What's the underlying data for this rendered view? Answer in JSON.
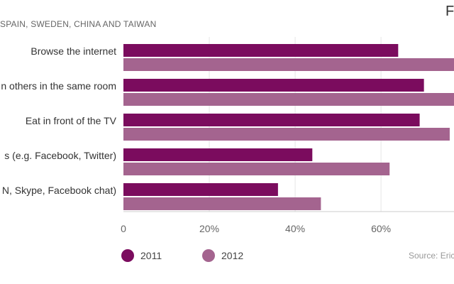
{
  "header": {
    "subtitle": "SPAIN, SWEDEN, CHINA AND TAIWAN",
    "logo_text": "F"
  },
  "chart_data": {
    "type": "bar",
    "orientation": "horizontal",
    "categories": [
      "Browse the internet",
      "n others in the same room",
      "Eat in front of the TV",
      "s (e.g. Facebook, Twitter)",
      "N, Skype, Facebook chat)"
    ],
    "series": [
      {
        "name": "2011",
        "color": "#7b0c5e",
        "values": [
          64,
          70,
          69,
          44,
          36
        ]
      },
      {
        "name": "2012",
        "color": "#a4648f",
        "values": [
          80,
          80,
          76,
          62,
          46
        ]
      }
    ],
    "x_ticks": [
      "0",
      "20%",
      "40%",
      "60%"
    ],
    "xlim": [
      0,
      77
    ],
    "grid": true,
    "legend_position": "bottom-left"
  },
  "footer": {
    "source": "Source: Eric"
  }
}
